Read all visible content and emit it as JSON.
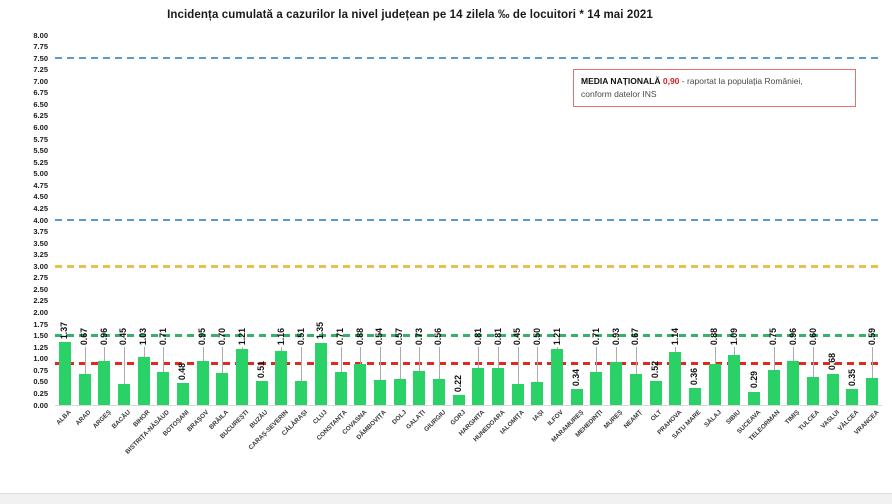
{
  "title": "Incidența cumulată a cazurilor la nivel județean pe 14 zilela ‰ de locuitori * 14 mai 2021",
  "legend_box": {
    "title": "MEDIA NAȚIONALĂ",
    "value": "0,90",
    "text_line1": "- raportat la populația României,",
    "text_line2": "conform datelor INS"
  },
  "chart_data": {
    "type": "bar",
    "title": "Incidența cumulată a cazurilor la nivel județean pe 14 zilela ‰ de locuitori * 14 mai 2021",
    "categories": [
      "ALBA",
      "ARAD",
      "ARGEȘ",
      "BACĂU",
      "BIHOR",
      "BISTRIȚA-NĂSĂUD",
      "BOTOȘANI",
      "BRAȘOV",
      "BRĂILA",
      "BUCUREȘTI",
      "BUZĂU",
      "CARAȘ-SEVERIN",
      "CĂLĂRAȘI",
      "CLUJ",
      "CONSTANȚA",
      "COVASNA",
      "DÂMBOVIȚA",
      "DOLJ",
      "GALAȚI",
      "GIURGIU",
      "GORJ",
      "HARGHITA",
      "HUNEDOARA",
      "IALOMIȚA",
      "IAȘI",
      "ILFOV",
      "MARAMUREȘ",
      "MEHEDINȚI",
      "MUREȘ",
      "NEAMȚ",
      "OLT",
      "PRAHOVA",
      "SATU MARE",
      "SĂLAJ",
      "SIBIU",
      "SUCEAVA",
      "TELEORMAN",
      "TIMIȘ",
      "TULCEA",
      "VASLUI",
      "VÂLCEA",
      "VRANCEA"
    ],
    "values": [
      1.37,
      0.67,
      0.96,
      0.45,
      1.03,
      0.71,
      0.48,
      0.95,
      0.7,
      1.21,
      0.51,
      1.16,
      0.51,
      1.35,
      0.71,
      0.88,
      0.54,
      0.57,
      0.73,
      0.56,
      0.22,
      0.81,
      0.81,
      0.45,
      0.5,
      1.21,
      0.34,
      0.71,
      0.93,
      0.67,
      0.52,
      1.14,
      0.36,
      0.88,
      1.09,
      0.29,
      0.75,
      0.96,
      0.6,
      0.68,
      0.35,
      0.59
    ],
    "xlabel": "",
    "ylabel": "",
    "ylim": [
      0,
      8
    ],
    "ytick_step": 0.25,
    "grid": false,
    "legend_position": "none",
    "bar_color": "#2ad167",
    "value_label_color": "#111111",
    "reference_lines": [
      {
        "value": 7.5,
        "color": "#5b9bd5",
        "thickness": 2.5
      },
      {
        "value": 4.0,
        "color": "#5b9bd5",
        "thickness": 2.5
      },
      {
        "value": 3.0,
        "color": "#e8c24f",
        "thickness": 3
      },
      {
        "value": 1.5,
        "color": "#35b267",
        "thickness": 2.5
      },
      {
        "value": 0.9,
        "color": "#e0281e",
        "thickness": 3.5
      }
    ],
    "national_average": 0.9,
    "low_label_indices": [
      6,
      10,
      20,
      26,
      30,
      32,
      35,
      39,
      40
    ]
  }
}
